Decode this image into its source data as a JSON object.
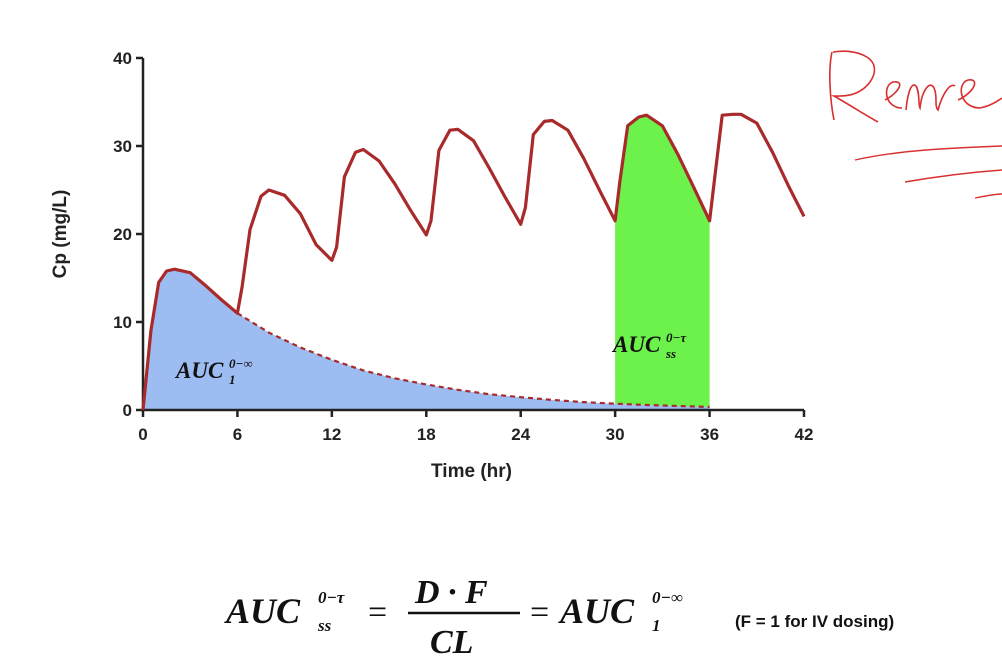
{
  "chart_data": {
    "type": "line",
    "xlabel": "Time (hr)",
    "ylabel": "Cp (mg/L)",
    "xlim": [
      0,
      42
    ],
    "ylim": [
      0,
      40
    ],
    "xticks": [
      0,
      6,
      12,
      18,
      24,
      30,
      36,
      42
    ],
    "yticks": [
      0,
      10,
      20,
      30,
      40
    ],
    "dose_interval_hr": 6,
    "series": [
      {
        "color": "#a82a2a",
        "x": [
          0,
          0.5,
          1,
          1.5,
          2,
          3,
          4,
          5,
          6,
          6.3,
          6.8,
          7.5,
          8,
          9,
          10,
          11,
          12,
          12.3,
          12.8,
          13.5,
          14,
          15,
          16,
          17,
          18,
          18.3,
          18.8,
          19.5,
          20,
          21,
          22,
          23,
          24,
          24.3,
          24.8,
          25.5,
          26,
          27,
          28,
          29,
          30,
          30.3,
          30.8,
          31.5,
          32,
          33,
          34,
          35,
          36,
          36.3,
          36.8,
          37.5,
          38,
          39,
          40,
          41,
          42
        ],
        "y": [
          0,
          9,
          14.5,
          15.8,
          16,
          15.6,
          14.1,
          12.5,
          11,
          14,
          20.5,
          24.3,
          25,
          24.4,
          22.3,
          18.8,
          17,
          18.5,
          26.5,
          29.3,
          29.6,
          28.3,
          25.7,
          22.7,
          19.9,
          21.5,
          29.5,
          31.8,
          31.9,
          30.6,
          27.5,
          24.2,
          21.1,
          23,
          31.3,
          32.8,
          32.9,
          31.8,
          28.6,
          25,
          21.5,
          26,
          32.3,
          33.3,
          33.5,
          32.3,
          29,
          25.3,
          21.5,
          26,
          33.5,
          33.6,
          33.6,
          32.6,
          29.3,
          25.5,
          22
        ]
      },
      {
        "color": "#a82a2a",
        "dashed": true,
        "x": [
          6,
          8,
          10,
          12,
          14,
          16,
          18,
          20,
          22,
          24,
          26,
          28,
          30,
          32,
          34,
          36
        ],
        "y": [
          11,
          8.8,
          7.1,
          5.7,
          4.5,
          3.6,
          2.9,
          2.3,
          1.8,
          1.45,
          1.15,
          0.9,
          0.72,
          0.57,
          0.45,
          0.35
        ]
      }
    ],
    "shaded_regions": [
      {
        "from": 0,
        "to": 36,
        "color": "#9dbcf2",
        "label_base": "AUC",
        "label_sup": "0−∞",
        "label_sub": "1"
      },
      {
        "from": 30,
        "to": 36,
        "color": "#6cf24a",
        "label_base": "AUC",
        "label_sup": "0−τ",
        "label_sub": "ss"
      }
    ]
  },
  "formula": {
    "lhs_base": "AUC",
    "lhs_sup": "0−τ",
    "lhs_sub": "ss",
    "equals": "=",
    "numerator": "D · F",
    "denominator": "CL",
    "rhs_base": "AUC",
    "rhs_sup": "0−∞",
    "rhs_sub": "1"
  },
  "note": "(F = 1 for IV dosing)",
  "handwriting": {
    "text": "Reme"
  }
}
